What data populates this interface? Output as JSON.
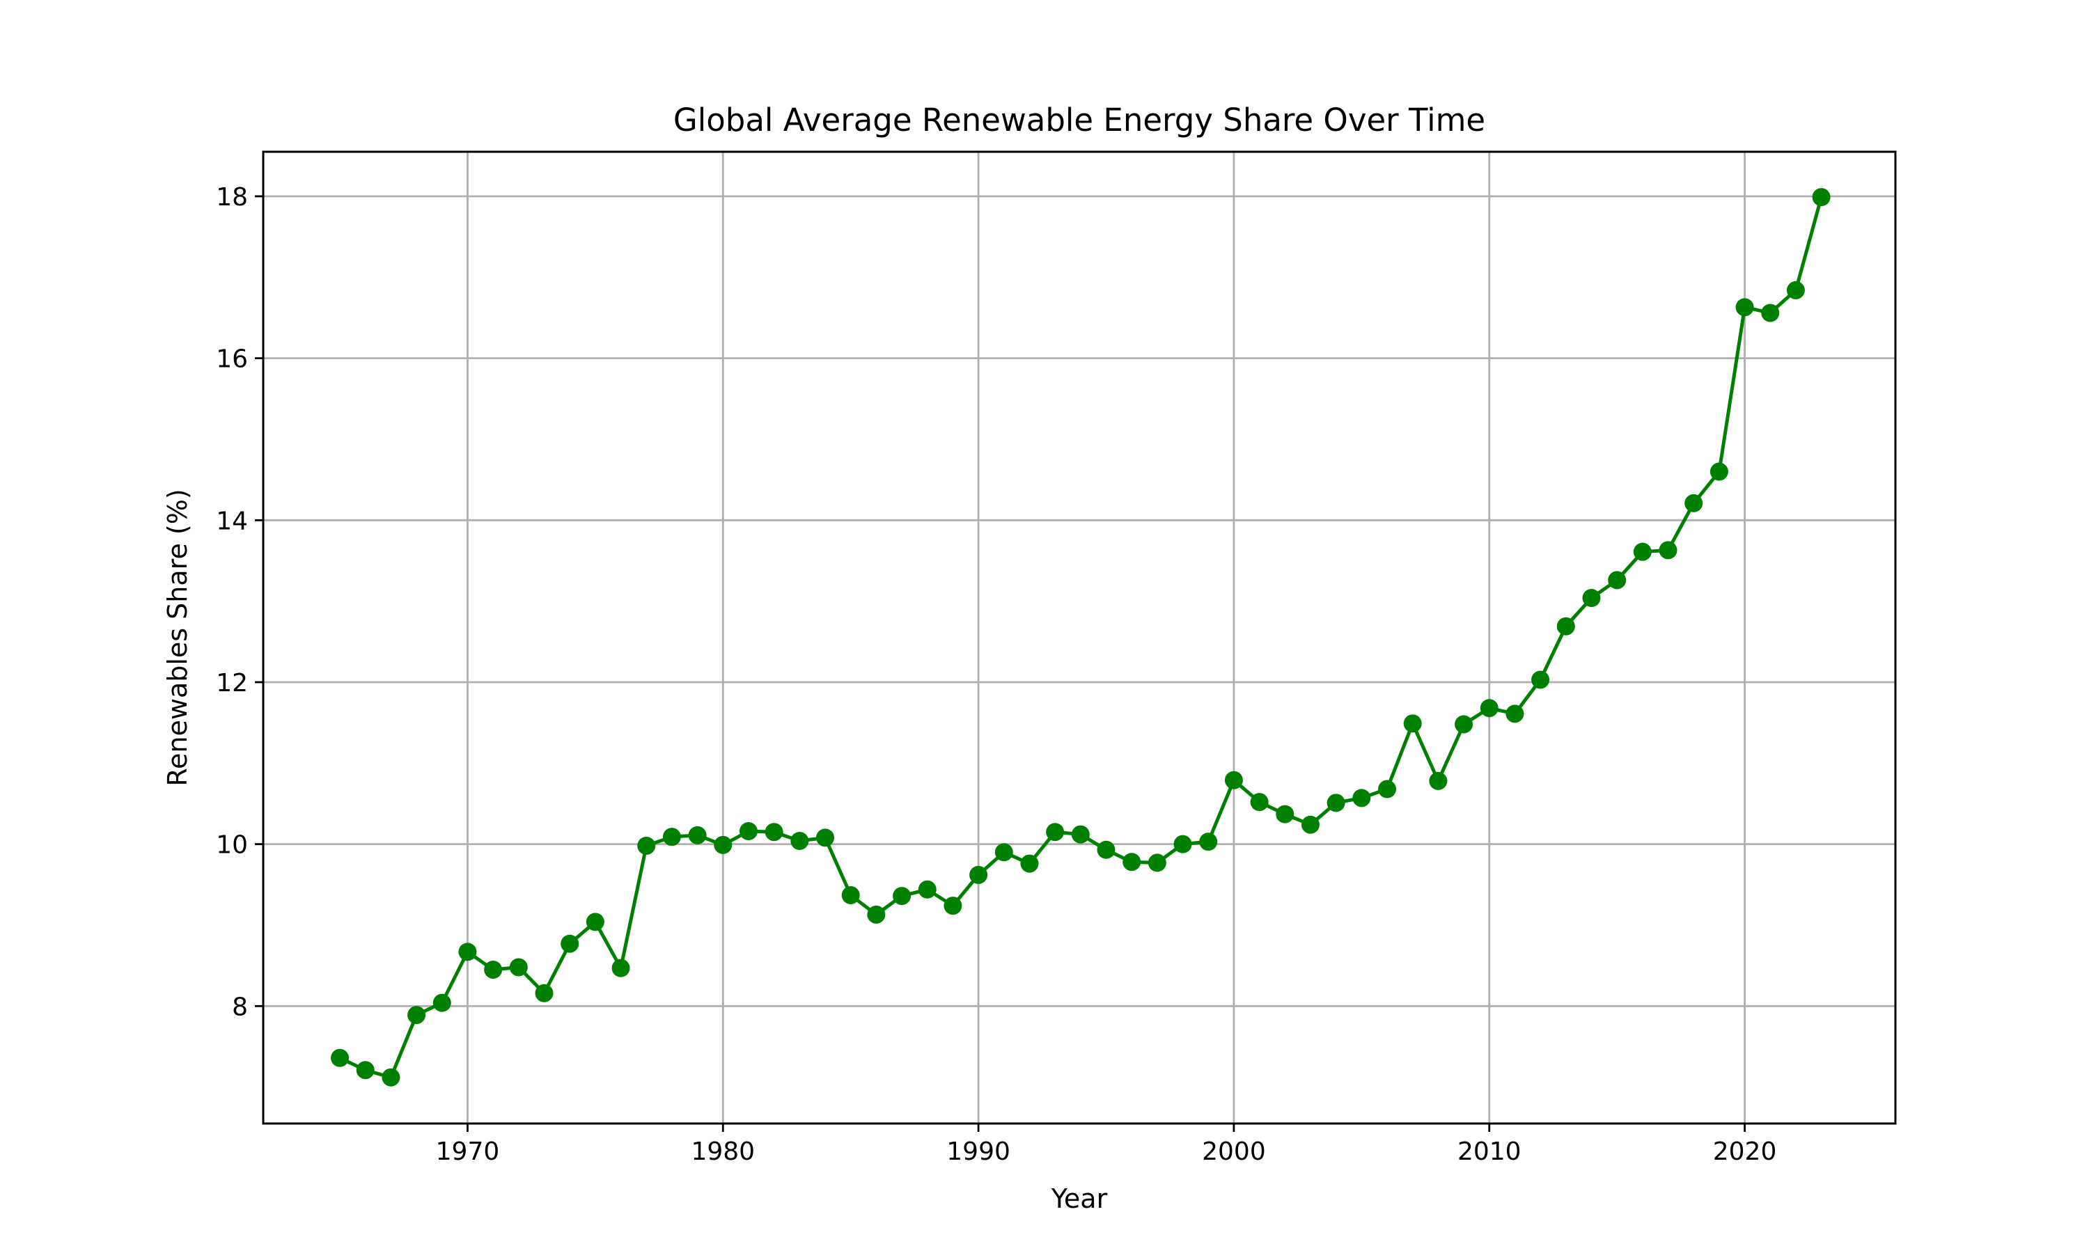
{
  "chart_data": {
    "type": "line",
    "title": "Global Average Renewable Energy Share Over Time",
    "xlabel": "Year",
    "ylabel": "Renewables Share (%)",
    "xlim": [
      1962,
      2025.9
    ],
    "ylim": [
      6.55,
      18.55
    ],
    "xticks": [
      1970,
      1980,
      1990,
      2000,
      2010,
      2020
    ],
    "yticks": [
      8,
      10,
      12,
      14,
      16,
      18
    ],
    "grid": true,
    "legend": "none",
    "color": "#008000",
    "marker": "circle",
    "x": [
      1965,
      1966,
      1967,
      1968,
      1969,
      1970,
      1971,
      1972,
      1973,
      1974,
      1975,
      1976,
      1977,
      1978,
      1979,
      1980,
      1981,
      1982,
      1983,
      1984,
      1985,
      1986,
      1987,
      1988,
      1989,
      1990,
      1991,
      1992,
      1993,
      1994,
      1995,
      1996,
      1997,
      1998,
      1999,
      2000,
      2001,
      2002,
      2003,
      2004,
      2005,
      2006,
      2007,
      2008,
      2009,
      2010,
      2011,
      2012,
      2013,
      2014,
      2015,
      2016,
      2017,
      2018,
      2019,
      2020,
      2021,
      2022,
      2023
    ],
    "series": [
      {
        "values": [
          7.36,
          7.21,
          7.12,
          7.89,
          8.04,
          8.67,
          8.45,
          8.48,
          8.16,
          8.77,
          9.04,
          8.47,
          9.98,
          10.09,
          10.11,
          9.99,
          10.16,
          10.15,
          10.04,
          10.08,
          9.37,
          9.13,
          9.36,
          9.44,
          9.24,
          9.62,
          9.9,
          9.76,
          10.15,
          10.12,
          9.93,
          9.78,
          9.77,
          10.0,
          10.03,
          10.79,
          10.52,
          10.37,
          10.24,
          10.51,
          10.57,
          10.68,
          11.49,
          10.78,
          11.48,
          11.68,
          11.61,
          12.03,
          12.69,
          13.04,
          13.26,
          13.61,
          13.63,
          14.21,
          14.6,
          16.63,
          16.56,
          16.84,
          17.99
        ]
      }
    ]
  }
}
